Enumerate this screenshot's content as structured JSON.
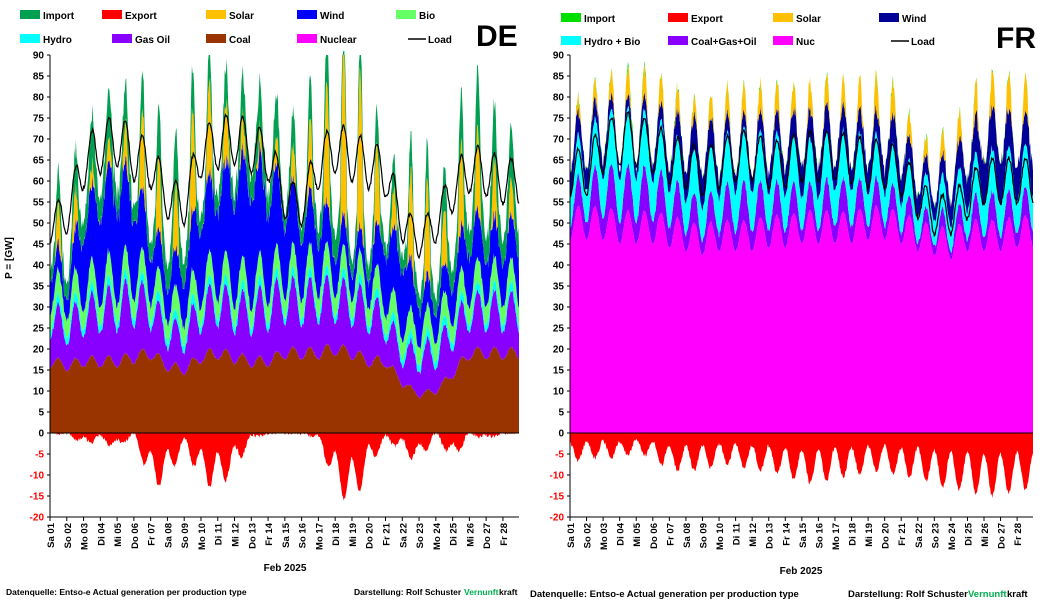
{
  "chart_data": [
    {
      "type": "area",
      "title": "DE",
      "ylabel": "P = [GW]",
      "xlabel": "Feb 2025",
      "ylim": [
        -20,
        90
      ],
      "grid": false,
      "y_ticks": [
        "90",
        "85",
        "80",
        "75",
        "70",
        "65",
        "60",
        "55",
        "50",
        "45",
        "40",
        "35",
        "30",
        "25",
        "20",
        "15",
        "10",
        "5",
        "0",
        "-5",
        "-10",
        "-15",
        "-20"
      ],
      "legend": [
        {
          "name": "Import",
          "color": "#00a050"
        },
        {
          "name": "Export",
          "color": "#ff0000"
        },
        {
          "name": "Solar",
          "color": "#ffc000"
        },
        {
          "name": "Wind",
          "color": "#0000ff"
        },
        {
          "name": "Bio",
          "color": "#66ff66"
        },
        {
          "name": "Hydro",
          "color": "#00ffff"
        },
        {
          "name": "Gas Oil",
          "color": "#8800ff"
        },
        {
          "name": "Coal",
          "color": "#993300"
        },
        {
          "name": "Nuclear",
          "color": "#ff00ff"
        },
        {
          "name": "Load",
          "color": "#000000"
        }
      ],
      "days": [
        "Sa 01",
        "So 02",
        "Mo 03",
        "Di 04",
        "Mi 05",
        "Do 06",
        "Fr 07",
        "Sa 08",
        "So 09",
        "Mo 10",
        "Di 11",
        "Mi 12",
        "Do 13",
        "Fr 14",
        "Sa 15",
        "So 16",
        "Mo 17",
        "Di 18",
        "Mi 19",
        "Do 20",
        "Fr 21",
        "Sa 22",
        "So 23",
        "Mo 24",
        "Di 25",
        "Mi 26",
        "Do 27",
        "Fr 28"
      ],
      "daily_levels": {
        "coal": [
          17,
          16,
          17,
          17,
          17,
          18,
          19,
          16,
          15,
          18,
          19,
          18,
          17,
          17,
          19,
          19,
          19,
          20,
          19,
          17,
          17,
          12,
          9,
          10,
          14,
          19,
          19,
          19
        ],
        "gas_oil": [
          10,
          9,
          11,
          12,
          13,
          13,
          11,
          8,
          8,
          11,
          12,
          11,
          12,
          13,
          13,
          12,
          13,
          12,
          12,
          12,
          9,
          7,
          9,
          9,
          10,
          10,
          10,
          10
        ],
        "hydro": [
          2,
          2,
          2,
          2,
          2,
          2,
          2,
          2,
          2,
          2,
          2,
          2,
          2,
          2,
          2,
          2,
          2,
          2,
          2,
          2,
          2,
          2,
          2,
          2,
          2,
          2,
          2,
          2
        ],
        "bio": [
          5,
          5,
          5,
          5,
          5,
          5,
          5,
          5,
          5,
          5,
          5,
          5,
          5,
          5,
          5,
          5,
          5,
          5,
          5,
          5,
          5,
          5,
          5,
          5,
          5,
          5,
          5,
          5
        ],
        "wind": [
          8,
          4,
          16,
          20,
          22,
          18,
          10,
          8,
          10,
          18,
          20,
          24,
          26,
          22,
          16,
          14,
          12,
          8,
          6,
          6,
          14,
          16,
          8,
          6,
          8,
          12,
          10,
          10
        ],
        "solar": [
          3,
          6,
          2,
          2,
          3,
          5,
          12,
          4,
          10,
          12,
          8,
          5,
          2,
          2,
          4,
          3,
          12,
          14,
          22,
          12,
          5,
          3,
          16,
          4,
          8,
          10,
          8,
          4
        ],
        "import": [
          5,
          6,
          8,
          9,
          8,
          6,
          7,
          10,
          9,
          6,
          7,
          6,
          9,
          8,
          6,
          6,
          8,
          10,
          6,
          7,
          5,
          6,
          6,
          7,
          8,
          10,
          10,
          9
        ],
        "export": [
          0,
          0,
          -2,
          -1,
          -3,
          0,
          -9,
          -8,
          -2,
          -8,
          -9,
          -6,
          -1,
          0,
          0,
          0,
          -1,
          -9,
          -12,
          -6,
          -1,
          -3,
          -5,
          0,
          -5,
          0,
          -1,
          0
        ],
        "load": [
          50,
          52,
          64,
          68,
          70,
          66,
          64,
          56,
          54,
          67,
          69,
          70,
          68,
          66,
          56,
          54,
          64,
          68,
          66,
          64,
          62,
          50,
          46,
          50,
          58,
          63,
          62,
          60
        ]
      },
      "footer": {
        "source": "Datenquelle: Entso-e  Actual generation per production type",
        "author_label": "Darstellung:  Rolf Schuster",
        "brand_green": "Vernunft",
        "brand_black": "kraft"
      }
    },
    {
      "type": "area",
      "title": "FR",
      "ylabel": "",
      "xlabel": "Feb 2025",
      "ylim": [
        -20,
        90
      ],
      "grid": false,
      "y_ticks": [
        "90",
        "85",
        "80",
        "75",
        "70",
        "65",
        "60",
        "55",
        "50",
        "45",
        "40",
        "35",
        "30",
        "25",
        "20",
        "15",
        "10",
        "5",
        "0",
        "-5",
        "-10",
        "-15",
        "-20"
      ],
      "legend": [
        {
          "name": "Import",
          "color": "#00e000"
        },
        {
          "name": "Export",
          "color": "#ff0000"
        },
        {
          "name": "Solar",
          "color": "#ffc000"
        },
        {
          "name": "Wind",
          "color": "#000099"
        },
        {
          "name": "Hydro + Bio",
          "color": "#00ffff"
        },
        {
          "name": "Coal+Gas+Oil",
          "color": "#8800ff"
        },
        {
          "name": "Nuc",
          "color": "#ff00ff"
        },
        {
          "name": "Load",
          "color": "#000000"
        }
      ],
      "days": [
        "Sa 01",
        "So 02",
        "Mo 03",
        "Di 04",
        "Mi 05",
        "Do 06",
        "Fr 07",
        "Sa 08",
        "So 09",
        "Mo 10",
        "Di 11",
        "Mi 12",
        "Do 13",
        "Fr 14",
        "Sa 15",
        "So 16",
        "Mo 17",
        "Di 18",
        "Mi 19",
        "Do 20",
        "Fr 21",
        "Sa 22",
        "So 23",
        "Mo 24",
        "Di 25",
        "Mi 26",
        "Do 27",
        "Fr 28"
      ],
      "daily_levels": {
        "nuclear": [
          50,
          50,
          50,
          49,
          49,
          49,
          48,
          47,
          46,
          47,
          47,
          47,
          48,
          48,
          49,
          49,
          49,
          49,
          50,
          50,
          49,
          47,
          46,
          45,
          47,
          47,
          47,
          48
        ],
        "ff": [
          5,
          6,
          8,
          8,
          8,
          8,
          7,
          6,
          5,
          6,
          7,
          7,
          6,
          6,
          5,
          5,
          6,
          6,
          5,
          5,
          4,
          3,
          3,
          3,
          4,
          5,
          5,
          5
        ],
        "hydro_bio": [
          8,
          9,
          11,
          12,
          12,
          11,
          10,
          9,
          9,
          10,
          11,
          11,
          10,
          10,
          9,
          9,
          10,
          10,
          9,
          9,
          8,
          7,
          7,
          7,
          8,
          9,
          9,
          9
        ],
        "wind": [
          6,
          5,
          4,
          3,
          3,
          4,
          5,
          7,
          8,
          5,
          4,
          4,
          5,
          6,
          7,
          7,
          6,
          5,
          6,
          6,
          7,
          5,
          4,
          6,
          8,
          10,
          10,
          8
        ],
        "solar": [
          1,
          2,
          2,
          3,
          3,
          3,
          3,
          2,
          2,
          3,
          3,
          3,
          3,
          3,
          3,
          3,
          3,
          3,
          4,
          4,
          3,
          2,
          2,
          3,
          3,
          4,
          4,
          4
        ],
        "import": [
          0,
          0,
          0,
          0,
          1,
          0,
          0,
          0,
          0,
          0,
          0,
          0,
          0,
          0,
          0,
          0,
          0,
          0,
          0,
          0,
          0,
          0,
          0,
          0,
          0,
          0,
          0,
          0
        ],
        "export": [
          -5,
          -4,
          -4,
          -4,
          -3,
          -4,
          -6,
          -6,
          -6,
          -5,
          -5,
          -6,
          -6,
          -7,
          -8,
          -8,
          -7,
          -7,
          -6,
          -6,
          -7,
          -7,
          -8,
          -9,
          -9,
          -10,
          -10,
          -9
        ],
        "load": [
          62,
          62,
          68,
          70,
          70,
          68,
          65,
          64,
          62,
          64,
          66,
          66,
          64,
          64,
          66,
          66,
          66,
          65,
          64,
          64,
          62,
          56,
          52,
          52,
          56,
          60,
          60,
          60
        ]
      },
      "footer": {
        "source": "Datenquelle: Entso-e  Actual generation per production type",
        "author_label": "Darstellung:  Rolf Schuster",
        "brand_green": "Vernunft",
        "brand_black": "kraft"
      }
    }
  ]
}
